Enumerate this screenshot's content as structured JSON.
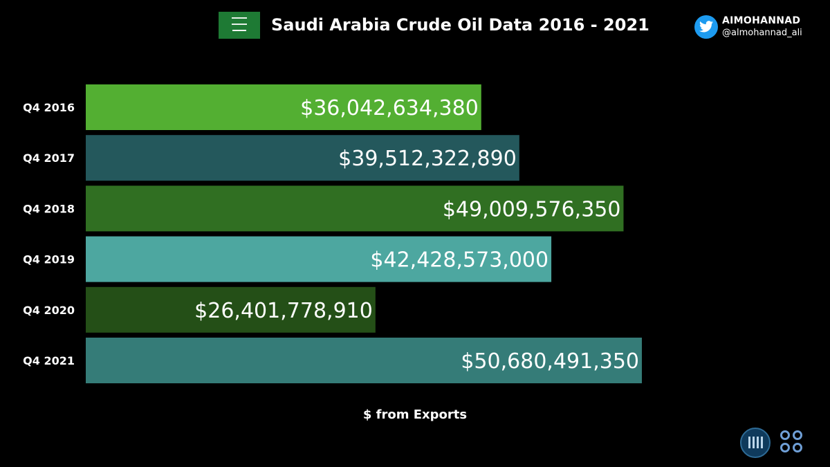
{
  "title": "Saudi Arabia Crude Oil Data 2016 - 2021",
  "brand": {
    "name": "AIMOHANNAD",
    "handle": "@almohannad_ali",
    "icon": "twitter-bird-icon"
  },
  "chart_data": {
    "type": "bar",
    "orientation": "horizontal",
    "title": "Saudi Arabia Crude Oil Data 2016 - 2021",
    "xlabel": "$ from Exports",
    "ylabel": "",
    "categories": [
      "Q4 2016",
      "Q4 2017",
      "Q4 2018",
      "Q4 2019",
      "Q4 2020",
      "Q4 2021"
    ],
    "values": [
      36042634380,
      39512322890,
      49009576350,
      42428573000,
      26401778910,
      50680491350
    ],
    "value_labels": [
      "$36,042,634,380",
      "$39,512,322,890",
      "$49,009,576,350",
      "$42,428,573,000",
      "$26,401,778,910",
      "$50,680,491,350"
    ],
    "colors": [
      "#53af32",
      "#24585c",
      "#306f22",
      "#4da7a0",
      "#244f17",
      "#357c78"
    ],
    "xlim": [
      0,
      51000000000
    ],
    "grid": false,
    "legend": "none"
  }
}
